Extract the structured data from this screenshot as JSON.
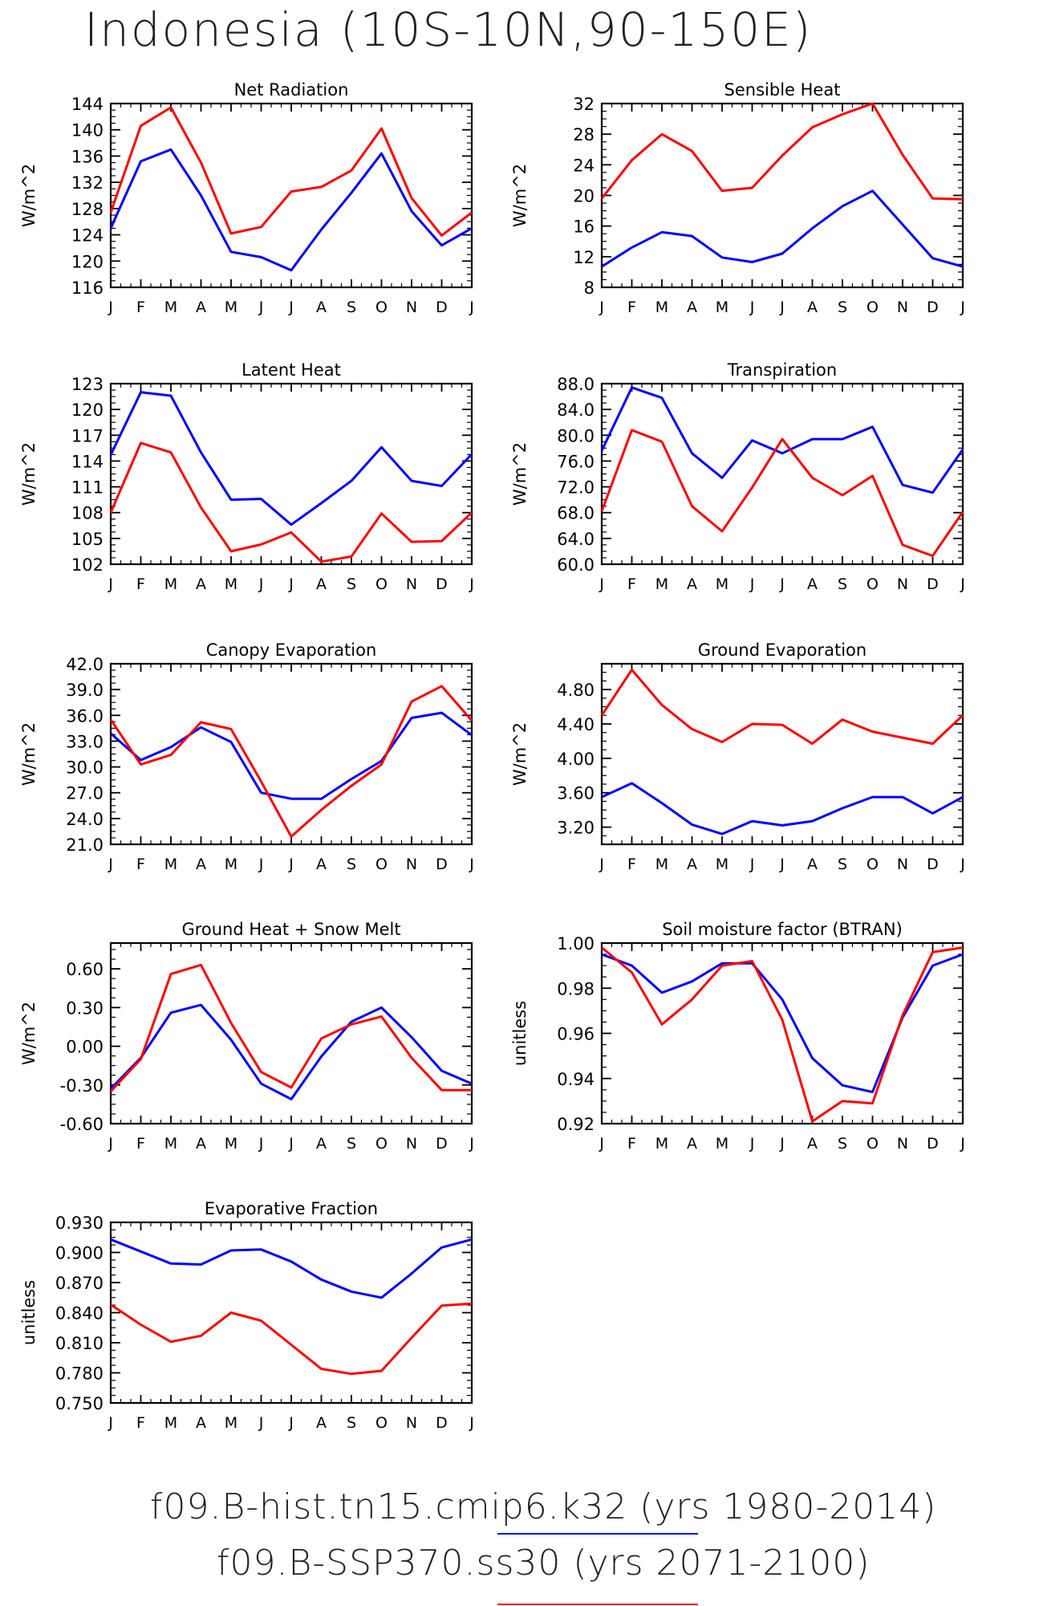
{
  "title": "Indonesia (10S-10N,90-150E)",
  "legend": [
    {
      "label": "f09.B-hist.tn15.cmip6.k32 (yrs 1980-2014)",
      "color": "#0000ff"
    },
    {
      "label": "f09.B-SSP370.ss30 (yrs 2071-2100)",
      "color": "#ff0000"
    }
  ],
  "chart_data": [
    {
      "type": "line",
      "title": "Net Radiation",
      "ylabel": "W/m^2",
      "x": [
        "J",
        "F",
        "M",
        "A",
        "M",
        "J",
        "J",
        "A",
        "S",
        "O",
        "N",
        "D",
        "J"
      ],
      "yticks": [
        "116",
        "120",
        "124",
        "128",
        "132",
        "136",
        "140",
        "144"
      ],
      "ylim": [
        116,
        144
      ],
      "series": [
        {
          "color": "#0000ff",
          "values": [
            125.0,
            135.2,
            137.0,
            130.0,
            121.4,
            120.6,
            118.6,
            124.8,
            130.4,
            136.4,
            127.6,
            122.4,
            125.0
          ]
        },
        {
          "color": "#ff0000",
          "values": [
            127.4,
            140.6,
            143.4,
            135.0,
            124.2,
            125.2,
            130.6,
            131.3,
            133.8,
            140.2,
            129.6,
            123.9,
            127.4
          ]
        }
      ]
    },
    {
      "type": "line",
      "title": "Sensible Heat",
      "ylabel": "W/m^2",
      "x": [
        "J",
        "F",
        "M",
        "A",
        "M",
        "J",
        "J",
        "A",
        "S",
        "O",
        "N",
        "D",
        "J"
      ],
      "yticks": [
        "8",
        "12",
        "16",
        "20",
        "24",
        "28",
        "32"
      ],
      "ylim": [
        8,
        32
      ],
      "series": [
        {
          "color": "#0000ff",
          "values": [
            10.7,
            13.2,
            15.2,
            14.7,
            11.9,
            11.3,
            12.4,
            15.7,
            18.6,
            20.6,
            16.2,
            11.8,
            10.7
          ]
        },
        {
          "color": "#ff0000",
          "values": [
            19.6,
            24.6,
            28.0,
            25.8,
            20.6,
            21.0,
            25.2,
            28.9,
            30.6,
            32.0,
            25.3,
            19.6,
            19.5
          ]
        }
      ]
    },
    {
      "type": "line",
      "title": "Latent Heat",
      "ylabel": "W/m^2",
      "x": [
        "J",
        "F",
        "M",
        "A",
        "M",
        "J",
        "J",
        "A",
        "S",
        "O",
        "N",
        "D",
        "J"
      ],
      "yticks": [
        "102",
        "105",
        "108",
        "111",
        "114",
        "117",
        "120",
        "123"
      ],
      "ylim": [
        102,
        123
      ],
      "series": [
        {
          "color": "#0000ff",
          "values": [
            114.7,
            122.0,
            121.6,
            115.0,
            109.5,
            109.6,
            106.6,
            109.1,
            111.7,
            115.6,
            111.7,
            111.1,
            114.8
          ]
        },
        {
          "color": "#ff0000",
          "values": [
            108.0,
            116.1,
            115.0,
            108.6,
            103.5,
            104.3,
            105.7,
            102.3,
            102.9,
            107.9,
            104.6,
            104.7,
            108.0
          ]
        }
      ]
    },
    {
      "type": "line",
      "title": "Transpiration",
      "ylabel": "W/m^2",
      "x": [
        "J",
        "F",
        "M",
        "A",
        "M",
        "J",
        "J",
        "A",
        "S",
        "O",
        "N",
        "D",
        "J"
      ],
      "yticks": [
        "60.0",
        "64.0",
        "68.0",
        "72.0",
        "76.0",
        "80.0",
        "84.0",
        "88.0"
      ],
      "ylim": [
        60,
        88
      ],
      "series": [
        {
          "color": "#0000ff",
          "values": [
            77.6,
            87.4,
            85.8,
            77.2,
            73.4,
            79.2,
            77.2,
            79.4,
            79.4,
            81.3,
            72.3,
            71.1,
            77.8
          ]
        },
        {
          "color": "#ff0000",
          "values": [
            68.2,
            80.8,
            79.0,
            69.0,
            65.1,
            71.9,
            79.4,
            73.4,
            70.7,
            73.7,
            63.0,
            61.3,
            68.1
          ]
        }
      ]
    },
    {
      "type": "line",
      "title": "Canopy Evaporation",
      "ylabel": "W/m^2",
      "x": [
        "J",
        "F",
        "M",
        "A",
        "M",
        "J",
        "J",
        "A",
        "S",
        "O",
        "N",
        "D",
        "J"
      ],
      "yticks": [
        "21.0",
        "24.0",
        "27.0",
        "30.0",
        "33.0",
        "36.0",
        "39.0",
        "42.0"
      ],
      "ylim": [
        21,
        42
      ],
      "series": [
        {
          "color": "#0000ff",
          "values": [
            33.9,
            30.8,
            32.3,
            34.6,
            32.9,
            27.0,
            26.3,
            26.3,
            28.6,
            30.7,
            35.7,
            36.3,
            33.7
          ]
        },
        {
          "color": "#ff0000",
          "values": [
            35.5,
            30.3,
            31.4,
            35.2,
            34.4,
            28.3,
            21.9,
            25.0,
            27.8,
            30.3,
            37.6,
            39.4,
            35.4
          ]
        }
      ]
    },
    {
      "type": "line",
      "title": "Ground Evaporation",
      "ylabel": "W/m^2",
      "x": [
        "J",
        "F",
        "M",
        "A",
        "M",
        "J",
        "J",
        "A",
        "S",
        "O",
        "N",
        "D",
        "J"
      ],
      "yticks": [
        "3.20",
        "3.60",
        "4.00",
        "4.40",
        "4.80"
      ],
      "ylim": [
        3.0,
        5.1
      ],
      "series": [
        {
          "color": "#0000ff",
          "values": [
            3.55,
            3.71,
            3.48,
            3.23,
            3.12,
            3.27,
            3.22,
            3.27,
            3.42,
            3.55,
            3.55,
            3.36,
            3.55
          ]
        },
        {
          "color": "#ff0000",
          "values": [
            4.5,
            5.03,
            4.62,
            4.34,
            4.19,
            4.4,
            4.39,
            4.17,
            4.45,
            4.31,
            4.24,
            4.17,
            4.5
          ]
        }
      ]
    },
    {
      "type": "line",
      "title": "Ground Heat + Snow Melt",
      "ylabel": "W/m^2",
      "x": [
        "J",
        "F",
        "M",
        "A",
        "M",
        "J",
        "J",
        "A",
        "S",
        "O",
        "N",
        "D",
        "J"
      ],
      "yticks": [
        "-0.60",
        "-0.30",
        "0.00",
        "0.30",
        "0.60"
      ],
      "ylim": [
        -0.6,
        0.8
      ],
      "series": [
        {
          "color": "#0000ff",
          "values": [
            -0.33,
            -0.09,
            0.26,
            0.32,
            0.05,
            -0.29,
            -0.41,
            -0.08,
            0.19,
            0.3,
            0.07,
            -0.19,
            -0.29
          ]
        },
        {
          "color": "#ff0000",
          "values": [
            -0.35,
            -0.1,
            0.56,
            0.63,
            0.18,
            -0.2,
            -0.32,
            0.06,
            0.17,
            0.23,
            -0.09,
            -0.34,
            -0.34
          ]
        }
      ]
    },
    {
      "type": "line",
      "title": "Soil moisture factor (BTRAN)",
      "ylabel": "unitless",
      "x": [
        "J",
        "F",
        "M",
        "A",
        "M",
        "J",
        "J",
        "A",
        "S",
        "O",
        "N",
        "D",
        "J"
      ],
      "yticks": [
        "0.92",
        "0.94",
        "0.96",
        "0.98",
        "1.00"
      ],
      "ylim": [
        0.92,
        1.0
      ],
      "series": [
        {
          "color": "#0000ff",
          "values": [
            0.995,
            0.99,
            0.978,
            0.983,
            0.991,
            0.991,
            0.975,
            0.949,
            0.937,
            0.934,
            0.967,
            0.99,
            0.995
          ]
        },
        {
          "color": "#ff0000",
          "values": [
            0.998,
            0.987,
            0.964,
            0.975,
            0.99,
            0.992,
            0.966,
            0.921,
            0.93,
            0.929,
            0.968,
            0.996,
            0.998
          ]
        }
      ]
    },
    {
      "type": "line",
      "title": "Evaporative Fraction",
      "ylabel": "unitless",
      "x": [
        "J",
        "F",
        "M",
        "A",
        "M",
        "J",
        "J",
        "A",
        "S",
        "O",
        "N",
        "D",
        "J"
      ],
      "yticks": [
        "0.750",
        "0.780",
        "0.810",
        "0.840",
        "0.870",
        "0.900",
        "0.930"
      ],
      "ylim": [
        0.75,
        0.93
      ],
      "series": [
        {
          "color": "#0000ff",
          "values": [
            0.913,
            0.901,
            0.889,
            0.888,
            0.902,
            0.903,
            0.891,
            0.873,
            0.861,
            0.855,
            0.879,
            0.905,
            0.913
          ]
        },
        {
          "color": "#ff0000",
          "values": [
            0.848,
            0.828,
            0.811,
            0.817,
            0.84,
            0.832,
            0.808,
            0.784,
            0.779,
            0.782,
            0.815,
            0.847,
            0.849
          ]
        }
      ]
    }
  ]
}
